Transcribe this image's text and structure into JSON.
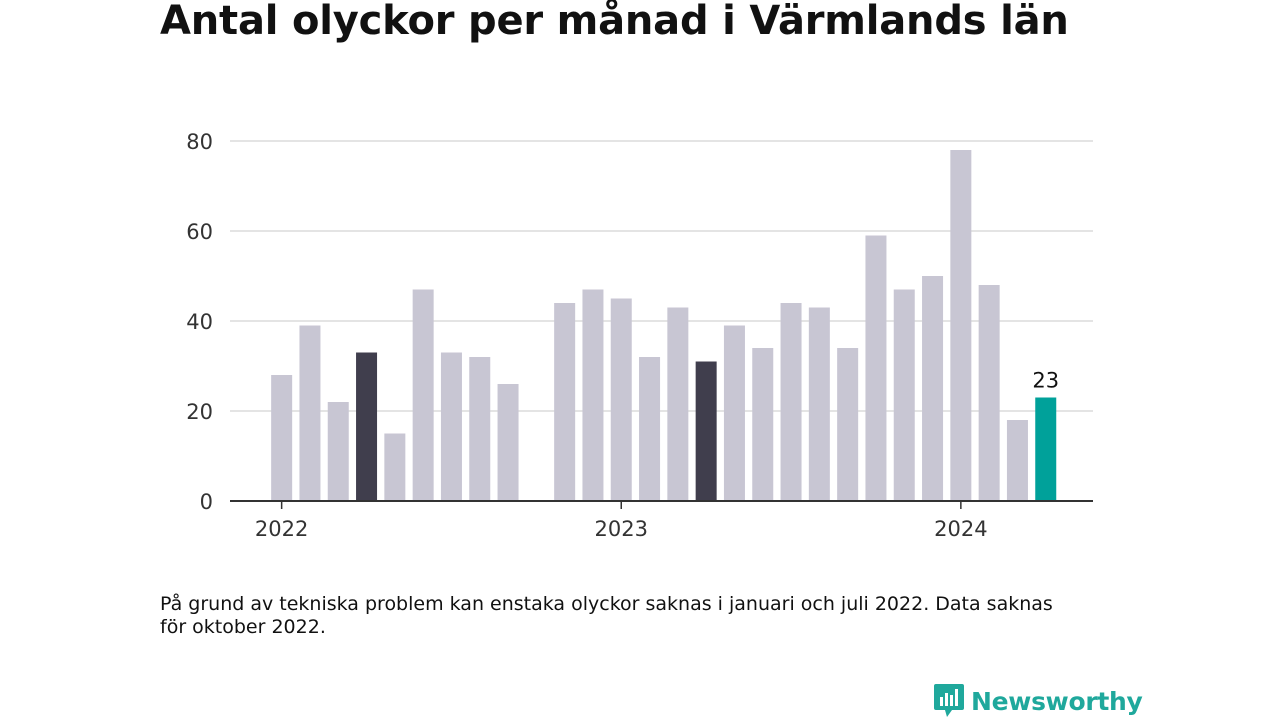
{
  "title": "Antal olyckor per månad i Värmlands län",
  "footnote": "På grund av tekniska problem kan enstaka olyckor saknas i januari och juli 2022. Data saknas för oktober 2022.",
  "brand": {
    "name": "Newsworthy",
    "icon": "newsworthy-logo-icon",
    "color": "#1fa89c"
  },
  "chart_data": {
    "type": "bar",
    "title": "Antal olyckor per månad i Värmlands län",
    "xlabel": "",
    "ylabel": "",
    "ylim": [
      0,
      80
    ],
    "yticks": [
      0,
      20,
      40,
      60,
      80
    ],
    "xticks": [
      "2022",
      "2023",
      "2024"
    ],
    "grid": true,
    "colors": {
      "default": "#c8c6d3",
      "highlight": "#403e4d",
      "latest": "#00a19a"
    },
    "categories": [
      "2022-01",
      "2022-02",
      "2022-03",
      "2022-04",
      "2022-05",
      "2022-06",
      "2022-07",
      "2022-08",
      "2022-09",
      "2022-10",
      "2022-11",
      "2022-12",
      "2023-01",
      "2023-02",
      "2023-03",
      "2023-04",
      "2023-05",
      "2023-06",
      "2023-07",
      "2023-08",
      "2023-09",
      "2023-10",
      "2023-11",
      "2023-12",
      "2024-01",
      "2024-02",
      "2024-03",
      "2024-04"
    ],
    "values": [
      28,
      39,
      22,
      33,
      15,
      47,
      33,
      32,
      26,
      null,
      44,
      47,
      45,
      32,
      43,
      31,
      39,
      34,
      44,
      43,
      34,
      59,
      47,
      50,
      78,
      48,
      18,
      23
    ],
    "styles": [
      "default",
      "default",
      "default",
      "highlight",
      "default",
      "default",
      "default",
      "default",
      "default",
      "default",
      "default",
      "default",
      "default",
      "default",
      "default",
      "highlight",
      "default",
      "default",
      "default",
      "default",
      "default",
      "default",
      "default",
      "default",
      "default",
      "default",
      "default",
      "latest"
    ],
    "annotations": [
      {
        "category": "2024-04",
        "value": 23,
        "label": "23"
      }
    ]
  }
}
